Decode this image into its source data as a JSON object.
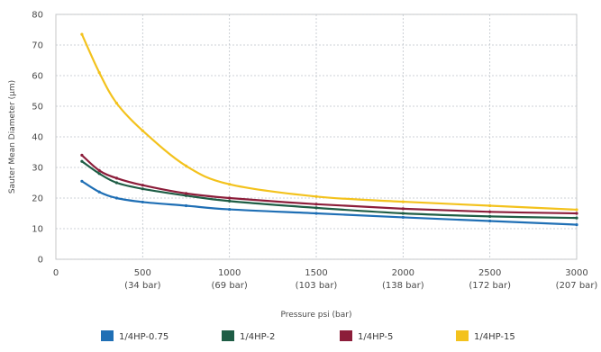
{
  "chart_data": {
    "type": "line",
    "title": "",
    "xlabel": "Pressure psi (bar)",
    "ylabel": "Sauter Mean Diameter (μm)",
    "xlim": [
      0,
      3000
    ],
    "ylim": [
      0,
      80
    ],
    "x_ticks": [
      {
        "value": 0,
        "label": "0",
        "sublabel": ""
      },
      {
        "value": 500,
        "label": "500",
        "sublabel": "(34 bar)"
      },
      {
        "value": 1000,
        "label": "1000",
        "sublabel": "(69 bar)"
      },
      {
        "value": 1500,
        "label": "1500",
        "sublabel": "(103 bar)"
      },
      {
        "value": 2000,
        "label": "2000",
        "sublabel": "(138 bar)"
      },
      {
        "value": 2500,
        "label": "2500",
        "sublabel": "(172 bar)"
      },
      {
        "value": 3000,
        "label": "3000",
        "sublabel": "(207 bar)"
      }
    ],
    "y_ticks": [
      {
        "value": 0,
        "label": "0"
      },
      {
        "value": 10,
        "label": "10"
      },
      {
        "value": 20,
        "label": "20"
      },
      {
        "value": 30,
        "label": "30"
      },
      {
        "value": 40,
        "label": "40"
      },
      {
        "value": 50,
        "label": "50"
      },
      {
        "value": 60,
        "label": "60"
      },
      {
        "value": 70,
        "label": "70"
      },
      {
        "value": 80,
        "label": "80"
      }
    ],
    "grid": true,
    "legend_position": "bottom",
    "series": [
      {
        "name": "1/4HP-0.75",
        "color": "#1f6fb5",
        "x": [
          150,
          250,
          350,
          500,
          750,
          1000,
          1500,
          2000,
          2500,
          3000
        ],
        "y": [
          25.5,
          22,
          20,
          18.7,
          17.5,
          16.3,
          15,
          13.7,
          12.5,
          11.3
        ]
      },
      {
        "name": "1/4HP-2",
        "color": "#1e5d45",
        "x": [
          150,
          250,
          350,
          500,
          750,
          1000,
          1500,
          2000,
          2500,
          3000
        ],
        "y": [
          32,
          28,
          25,
          23,
          20.8,
          19,
          16.8,
          15,
          14,
          13.5
        ]
      },
      {
        "name": "1/4HP-5",
        "color": "#8c1d3a",
        "x": [
          150,
          250,
          350,
          500,
          750,
          1000,
          1500,
          2000,
          2500,
          3000
        ],
        "y": [
          34,
          29,
          26.5,
          24.2,
          21.5,
          20,
          18,
          16.5,
          15.5,
          15
        ]
      },
      {
        "name": "1/4HP-15",
        "color": "#f3c21d",
        "x": [
          150,
          250,
          350,
          500,
          750,
          1000,
          1500,
          2000,
          2500,
          3000
        ],
        "y": [
          73.5,
          61,
          51,
          42,
          30.5,
          24.5,
          20.5,
          18.8,
          17.5,
          16.2
        ]
      }
    ]
  }
}
